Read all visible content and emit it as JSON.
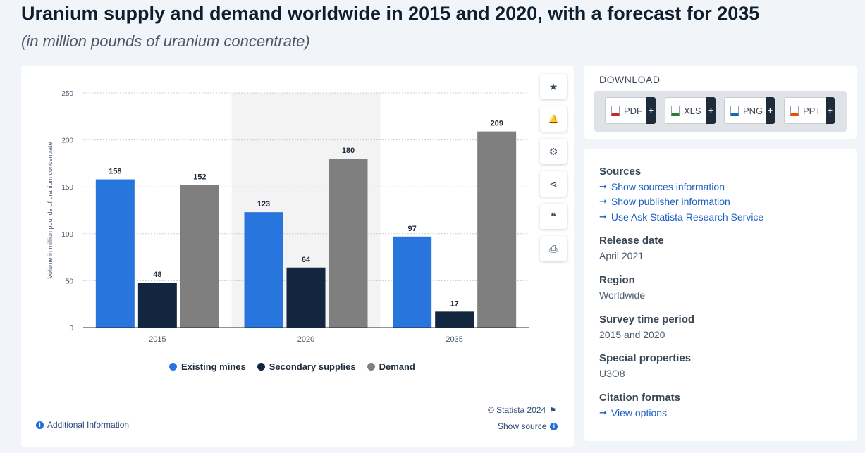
{
  "header": {
    "title": "Uranium supply and demand worldwide in 2015 and 2020, with a forecast for 2035",
    "subtitle": "(in million pounds of uranium concentrate)"
  },
  "chart_data": {
    "type": "bar",
    "categories": [
      "2015",
      "2020",
      "2035"
    ],
    "series": [
      {
        "name": "Existing mines",
        "values": [
          158,
          123,
          97
        ],
        "color": "#2876dd"
      },
      {
        "name": "Secondary supplies",
        "values": [
          48,
          64,
          17
        ],
        "color": "#12263f"
      },
      {
        "name": "Demand",
        "values": [
          152,
          180,
          209
        ],
        "color": "#7f7f7f"
      }
    ],
    "ylabel": "Volume in million pounds of uranium concentrate",
    "xlabel": "",
    "ylim": [
      0,
      250
    ],
    "yticks": [
      0,
      50,
      100,
      150,
      200,
      250
    ],
    "grid": true,
    "highlighted_category": "2020",
    "legend_position": "bottom"
  },
  "legend": [
    {
      "label": "Existing mines",
      "color": "#2876dd"
    },
    {
      "label": "Secondary supplies",
      "color": "#12263f"
    },
    {
      "label": "Demand",
      "color": "#7f7f7f"
    }
  ],
  "tools": [
    {
      "name": "star-icon",
      "glyph": "★"
    },
    {
      "name": "bell-icon",
      "glyph": "🔔"
    },
    {
      "name": "gear-icon",
      "glyph": "⚙"
    },
    {
      "name": "share-icon",
      "glyph": "⋖"
    },
    {
      "name": "quote-icon",
      "glyph": "❝"
    },
    {
      "name": "print-icon",
      "glyph": "⎙"
    }
  ],
  "footer": {
    "copyright": "© Statista 2024",
    "show_source": "Show source",
    "additional_info": "Additional Information"
  },
  "download": {
    "title": "DOWNLOAD",
    "buttons": [
      {
        "label": "PDF",
        "color": "#c62828"
      },
      {
        "label": "XLS",
        "color": "#2e7d32"
      },
      {
        "label": "PNG",
        "color": "#1565c0"
      },
      {
        "label": "PPT",
        "color": "#e65100"
      }
    ],
    "plus": "+"
  },
  "info": {
    "sources_label": "Sources",
    "sources_links": [
      "Show sources information",
      "Show publisher information",
      "Use Ask Statista Research Service"
    ],
    "release_label": "Release date",
    "release_value": "April 2021",
    "region_label": "Region",
    "region_value": "Worldwide",
    "survey_label": "Survey time period",
    "survey_value": "2015 and 2020",
    "special_label": "Special properties",
    "special_value": "U3O8",
    "citation_label": "Citation formats",
    "citation_link": "View options"
  }
}
